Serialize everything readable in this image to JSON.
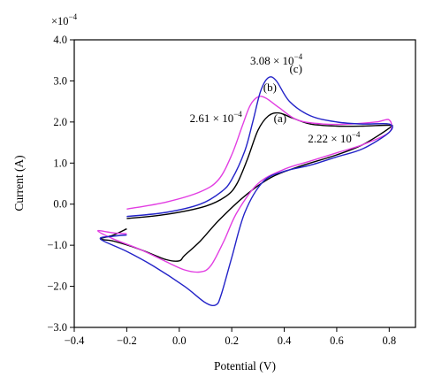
{
  "chart_data": {
    "type": "line",
    "xlabel": "Potential (V)",
    "ylabel": "Current (A)",
    "y_multiplier_label": "×10",
    "y_multiplier_exponent": "−4",
    "xlim": [
      -0.4,
      0.9
    ],
    "ylim": [
      -3.0,
      4.0
    ],
    "x_ticks": [
      {
        "value": -0.4,
        "label": "−0.4"
      },
      {
        "value": -0.2,
        "label": "−0.2"
      },
      {
        "value": 0.0,
        "label": "0.0"
      },
      {
        "value": 0.2,
        "label": "0.2"
      },
      {
        "value": 0.4,
        "label": "0.4"
      },
      {
        "value": 0.6,
        "label": "0.6"
      },
      {
        "value": 0.8,
        "label": "0.8"
      }
    ],
    "y_ticks": [
      {
        "value": 4.0,
        "label": "4.0"
      },
      {
        "value": 3.0,
        "label": "3.0"
      },
      {
        "value": 2.0,
        "label": "2.0"
      },
      {
        "value": 1.0,
        "label": "1.0"
      },
      {
        "value": 0.0,
        "label": "0.0"
      },
      {
        "value": -1.0,
        "label": "−1.0"
      },
      {
        "value": -2.0,
        "label": "−2.0"
      },
      {
        "value": -3.0,
        "label": "−3.0"
      }
    ],
    "grid": false,
    "series": [
      {
        "label": "(a)",
        "color": "#000000",
        "points": [
          [
            -0.2,
            -0.35
          ],
          [
            -0.05,
            -0.25
          ],
          [
            0.1,
            -0.05
          ],
          [
            0.18,
            0.2
          ],
          [
            0.22,
            0.5
          ],
          [
            0.26,
            1.1
          ],
          [
            0.3,
            1.8
          ],
          [
            0.34,
            2.15
          ],
          [
            0.38,
            2.22
          ],
          [
            0.43,
            2.1
          ],
          [
            0.5,
            1.95
          ],
          [
            0.6,
            1.9
          ],
          [
            0.7,
            1.9
          ],
          [
            0.8,
            1.92
          ],
          [
            0.8,
            1.85
          ],
          [
            0.7,
            1.45
          ],
          [
            0.6,
            1.2
          ],
          [
            0.45,
            0.9
          ],
          [
            0.35,
            0.65
          ],
          [
            0.25,
            0.2
          ],
          [
            0.15,
            -0.4
          ],
          [
            0.08,
            -0.9
          ],
          [
            0.02,
            -1.25
          ],
          [
            0.0,
            -1.38
          ],
          [
            -0.05,
            -1.35
          ],
          [
            -0.15,
            -1.1
          ],
          [
            -0.25,
            -0.9
          ],
          [
            -0.3,
            -0.85
          ],
          [
            -0.25,
            -0.75
          ],
          [
            -0.2,
            -0.6
          ]
        ]
      },
      {
        "label": "(b)",
        "color": "#e23ee2",
        "points": [
          [
            -0.2,
            -0.12
          ],
          [
            -0.05,
            0.05
          ],
          [
            0.08,
            0.3
          ],
          [
            0.15,
            0.6
          ],
          [
            0.2,
            1.2
          ],
          [
            0.24,
            1.9
          ],
          [
            0.27,
            2.4
          ],
          [
            0.3,
            2.61
          ],
          [
            0.33,
            2.58
          ],
          [
            0.38,
            2.35
          ],
          [
            0.45,
            2.05
          ],
          [
            0.55,
            1.95
          ],
          [
            0.65,
            1.95
          ],
          [
            0.75,
            2.0
          ],
          [
            0.8,
            2.05
          ],
          [
            0.8,
            1.75
          ],
          [
            0.7,
            1.45
          ],
          [
            0.6,
            1.25
          ],
          [
            0.5,
            1.05
          ],
          [
            0.4,
            0.85
          ],
          [
            0.3,
            0.5
          ],
          [
            0.22,
            -0.2
          ],
          [
            0.17,
            -0.9
          ],
          [
            0.12,
            -1.5
          ],
          [
            0.08,
            -1.65
          ],
          [
            0.02,
            -1.6
          ],
          [
            -0.05,
            -1.4
          ],
          [
            -0.15,
            -1.1
          ],
          [
            -0.25,
            -0.85
          ],
          [
            -0.31,
            -0.65
          ],
          [
            -0.25,
            -0.7
          ],
          [
            -0.2,
            -0.72
          ]
        ]
      },
      {
        "label": "(c)",
        "color": "#2323c8",
        "points": [
          [
            -0.2,
            -0.3
          ],
          [
            -0.05,
            -0.2
          ],
          [
            0.08,
            0.0
          ],
          [
            0.16,
            0.3
          ],
          [
            0.2,
            0.6
          ],
          [
            0.25,
            1.3
          ],
          [
            0.28,
            2.0
          ],
          [
            0.31,
            2.75
          ],
          [
            0.34,
            3.08
          ],
          [
            0.37,
            3.0
          ],
          [
            0.42,
            2.5
          ],
          [
            0.5,
            2.15
          ],
          [
            0.6,
            2.0
          ],
          [
            0.7,
            1.95
          ],
          [
            0.8,
            1.95
          ],
          [
            0.8,
            1.75
          ],
          [
            0.7,
            1.35
          ],
          [
            0.6,
            1.15
          ],
          [
            0.5,
            0.95
          ],
          [
            0.4,
            0.8
          ],
          [
            0.32,
            0.55
          ],
          [
            0.25,
            -0.2
          ],
          [
            0.2,
            -1.3
          ],
          [
            0.16,
            -2.2
          ],
          [
            0.14,
            -2.45
          ],
          [
            0.1,
            -2.4
          ],
          [
            0.02,
            -2.0
          ],
          [
            -0.1,
            -1.5
          ],
          [
            -0.2,
            -1.15
          ],
          [
            -0.3,
            -0.85
          ],
          [
            -0.25,
            -0.78
          ],
          [
            -0.2,
            -0.75
          ]
        ]
      }
    ],
    "annotations": [
      {
        "mantissa": "3.08 × 10",
        "exponent": "−4",
        "x": 0.27,
        "y": 3.4
      },
      {
        "mantissa": "2.61 × 10",
        "exponent": "−4",
        "x": 0.04,
        "y": 2.0
      },
      {
        "mantissa": "2.22 × 10",
        "exponent": "−4",
        "x": 0.49,
        "y": 1.5
      }
    ]
  }
}
